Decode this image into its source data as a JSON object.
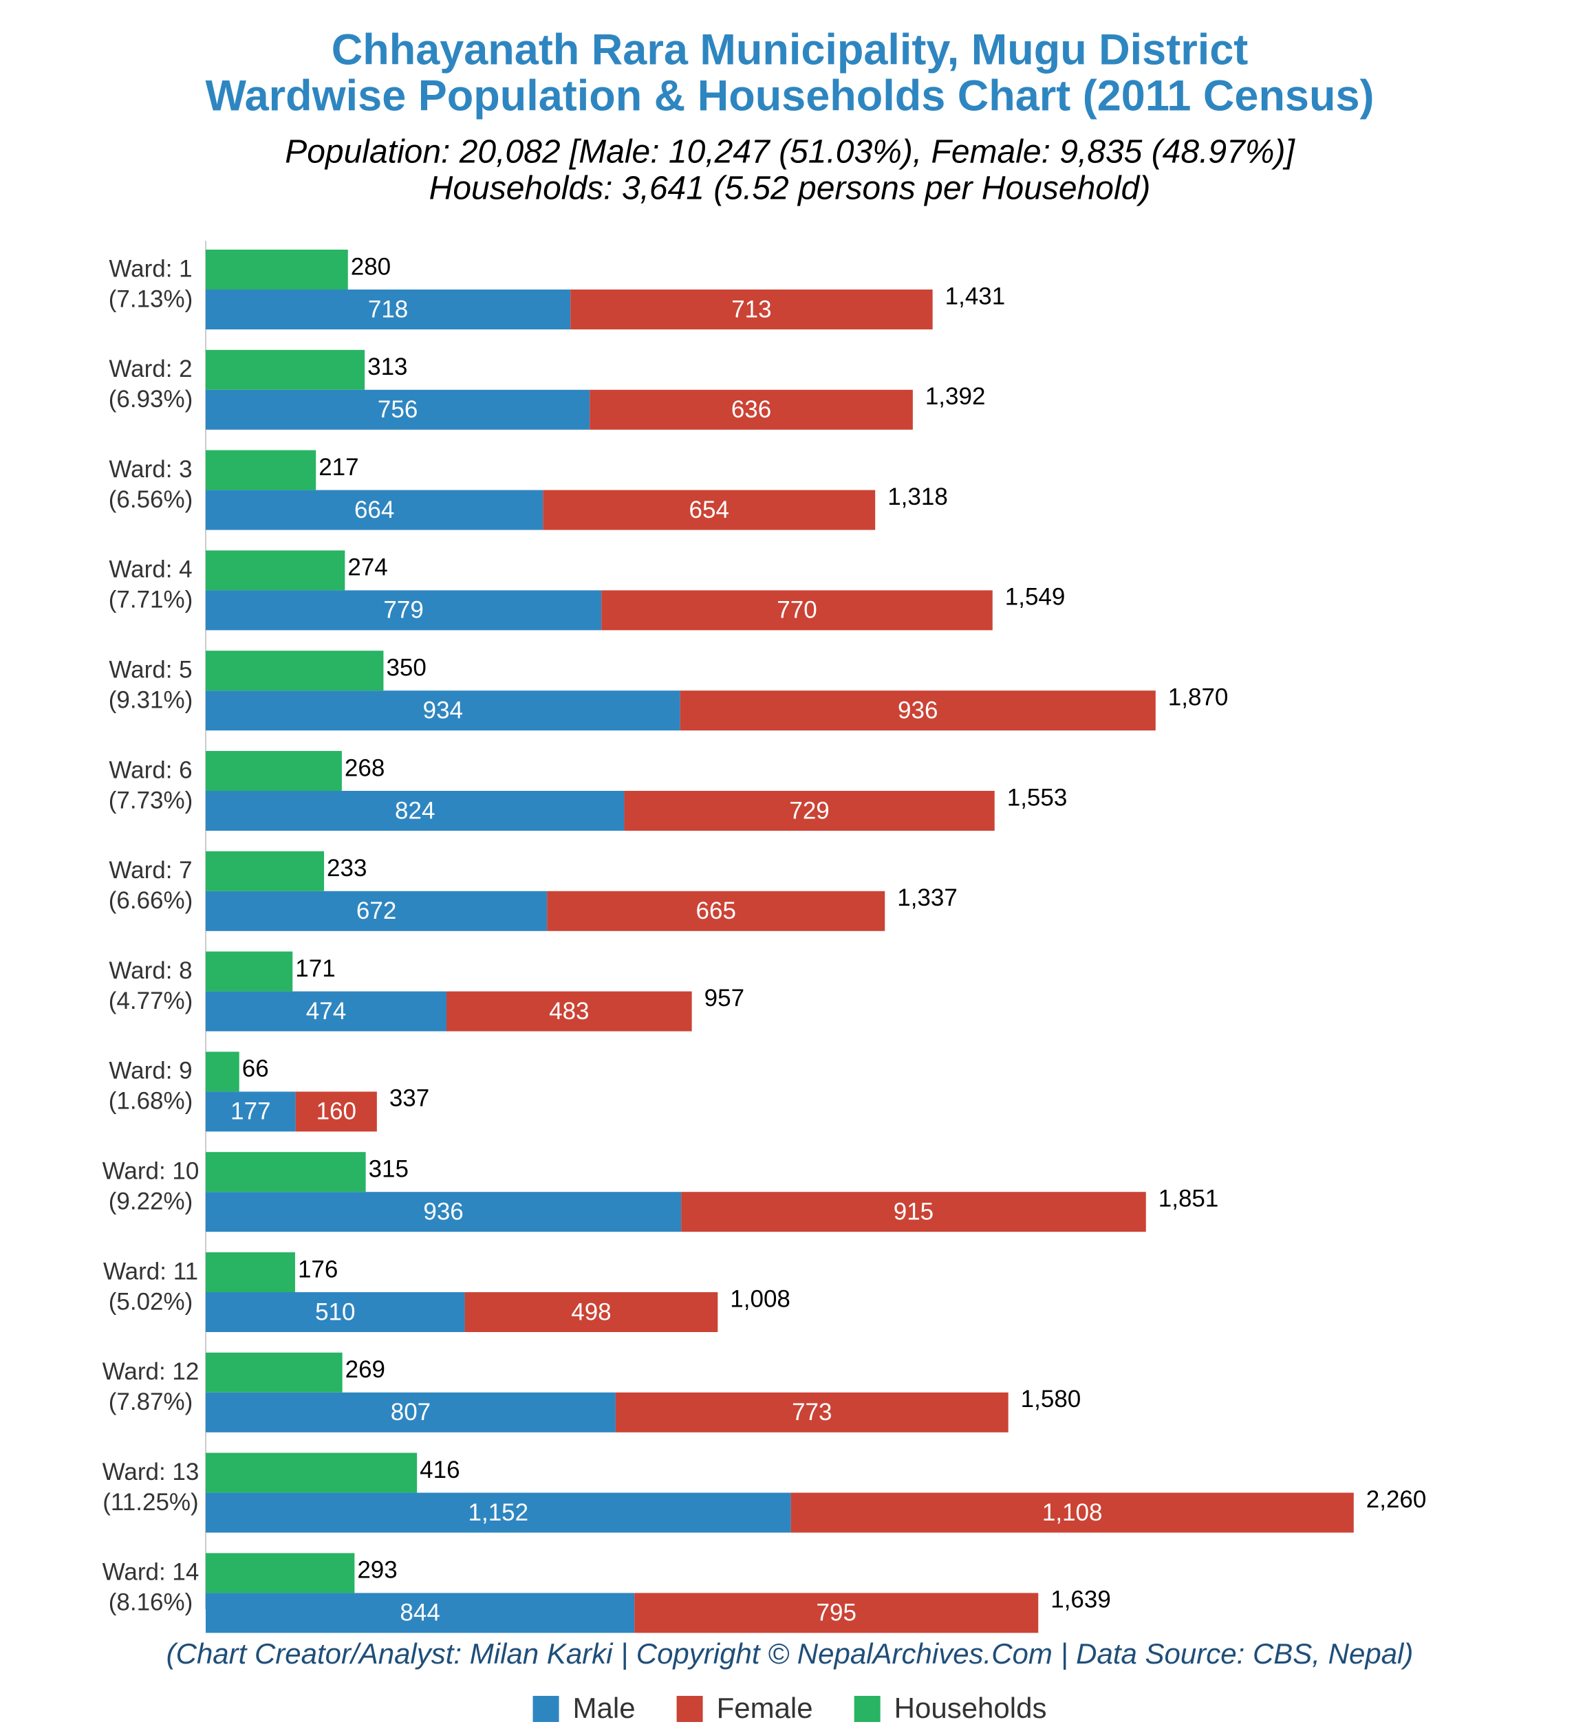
{
  "chart_data": {
    "type": "bar",
    "orientation": "horizontal",
    "title": [
      "Chhayanath Rara Municipality, Mugu District",
      "Wardwise Population & Households Chart (2011 Census)"
    ],
    "subtitle": [
      "Population: 20,082 [Male: 10,247 (51.03%), Female: 9,835 (48.97%)]",
      "Households: 3,641 (5.52 persons per Household)"
    ],
    "footer": "(Chart Creator/Analyst: Milan Karki | Copyright © NepalArchives.Com | Data Source: CBS, Nepal)",
    "categories": [
      "Ward: 1",
      "Ward: 2",
      "Ward: 3",
      "Ward: 4",
      "Ward: 5",
      "Ward: 6",
      "Ward: 7",
      "Ward: 8",
      "Ward: 9",
      "Ward: 10",
      "Ward: 11",
      "Ward: 12",
      "Ward: 13",
      "Ward: 14"
    ],
    "category_shares": [
      "(7.13%)",
      "(6.93%)",
      "(6.56%)",
      "(7.71%)",
      "(9.31%)",
      "(7.73%)",
      "(6.66%)",
      "(4.77%)",
      "(1.68%)",
      "(9.22%)",
      "(5.02%)",
      "(7.87%)",
      "(11.25%)",
      "(8.16%)"
    ],
    "series": [
      {
        "name": "Male",
        "color": "#2e86c1",
        "stacked": true,
        "values": [
          718,
          756,
          664,
          779,
          934,
          824,
          672,
          474,
          177,
          936,
          510,
          807,
          1152,
          844
        ],
        "value_labels": [
          "718",
          "756",
          "664",
          "779",
          "934",
          "824",
          "672",
          "474",
          "177",
          "936",
          "510",
          "807",
          "1,152",
          "844"
        ]
      },
      {
        "name": "Female",
        "color": "#cb4335",
        "stacked": true,
        "values": [
          713,
          636,
          654,
          770,
          936,
          729,
          665,
          483,
          160,
          915,
          498,
          773,
          1108,
          795
        ],
        "value_labels": [
          "713",
          "636",
          "654",
          "770",
          "936",
          "729",
          "665",
          "483",
          "160",
          "915",
          "498",
          "773",
          "1,108",
          "795"
        ]
      },
      {
        "name": "Households",
        "color": "#28b463",
        "stacked": false,
        "values": [
          280,
          313,
          217,
          274,
          350,
          268,
          233,
          171,
          66,
          315,
          176,
          269,
          416,
          293
        ]
      }
    ],
    "totals": [
      1431,
      1392,
      1318,
      1549,
      1870,
      1553,
      1337,
      957,
      337,
      1851,
      1008,
      1580,
      2260,
      1639
    ],
    "total_labels": [
      "1,431",
      "1,392",
      "1,318",
      "1,549",
      "1,870",
      "1,553",
      "1,337",
      "957",
      "337",
      "1,851",
      "1,008",
      "1,580",
      "2,260",
      "1,639"
    ],
    "xlim": [
      0,
      2500
    ]
  }
}
